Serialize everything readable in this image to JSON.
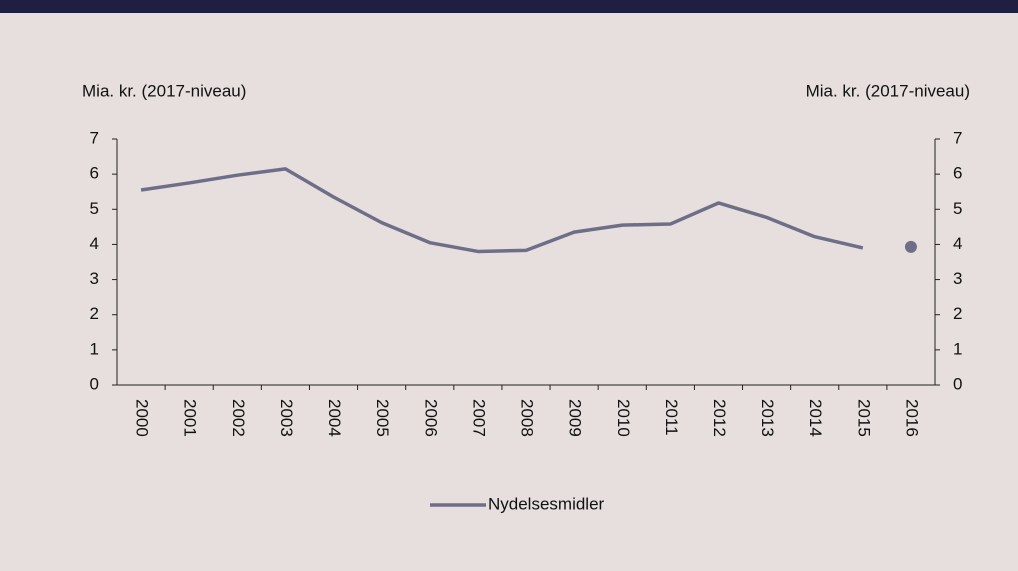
{
  "chart_data": {
    "type": "line",
    "y_label": "Mia. kr. (2017-niveau)",
    "y2_label": "Mia. kr. (2017-niveau)",
    "categories": [
      "2000",
      "2001",
      "2002",
      "2003",
      "2004",
      "2005",
      "2006",
      "2007",
      "2008",
      "2009",
      "2010",
      "2011",
      "2012",
      "2013",
      "2014",
      "2015",
      "2016"
    ],
    "series": [
      {
        "name": "Nydelsesmidler",
        "color": "#6f6e88",
        "values": [
          5.55,
          5.75,
          5.97,
          6.15,
          5.35,
          4.62,
          4.05,
          3.8,
          3.83,
          4.35,
          4.55,
          4.58,
          5.18,
          4.77,
          4.22,
          3.9,
          3.93
        ]
      }
    ],
    "marker_last": true,
    "ylim": [
      0,
      7
    ],
    "yticks": [
      0,
      1,
      2,
      3,
      4,
      5,
      6,
      7
    ],
    "y2lim": [
      0,
      7
    ],
    "y2ticks": [
      0,
      1,
      2,
      3,
      4,
      5,
      6,
      7
    ],
    "legend": "bottom"
  }
}
